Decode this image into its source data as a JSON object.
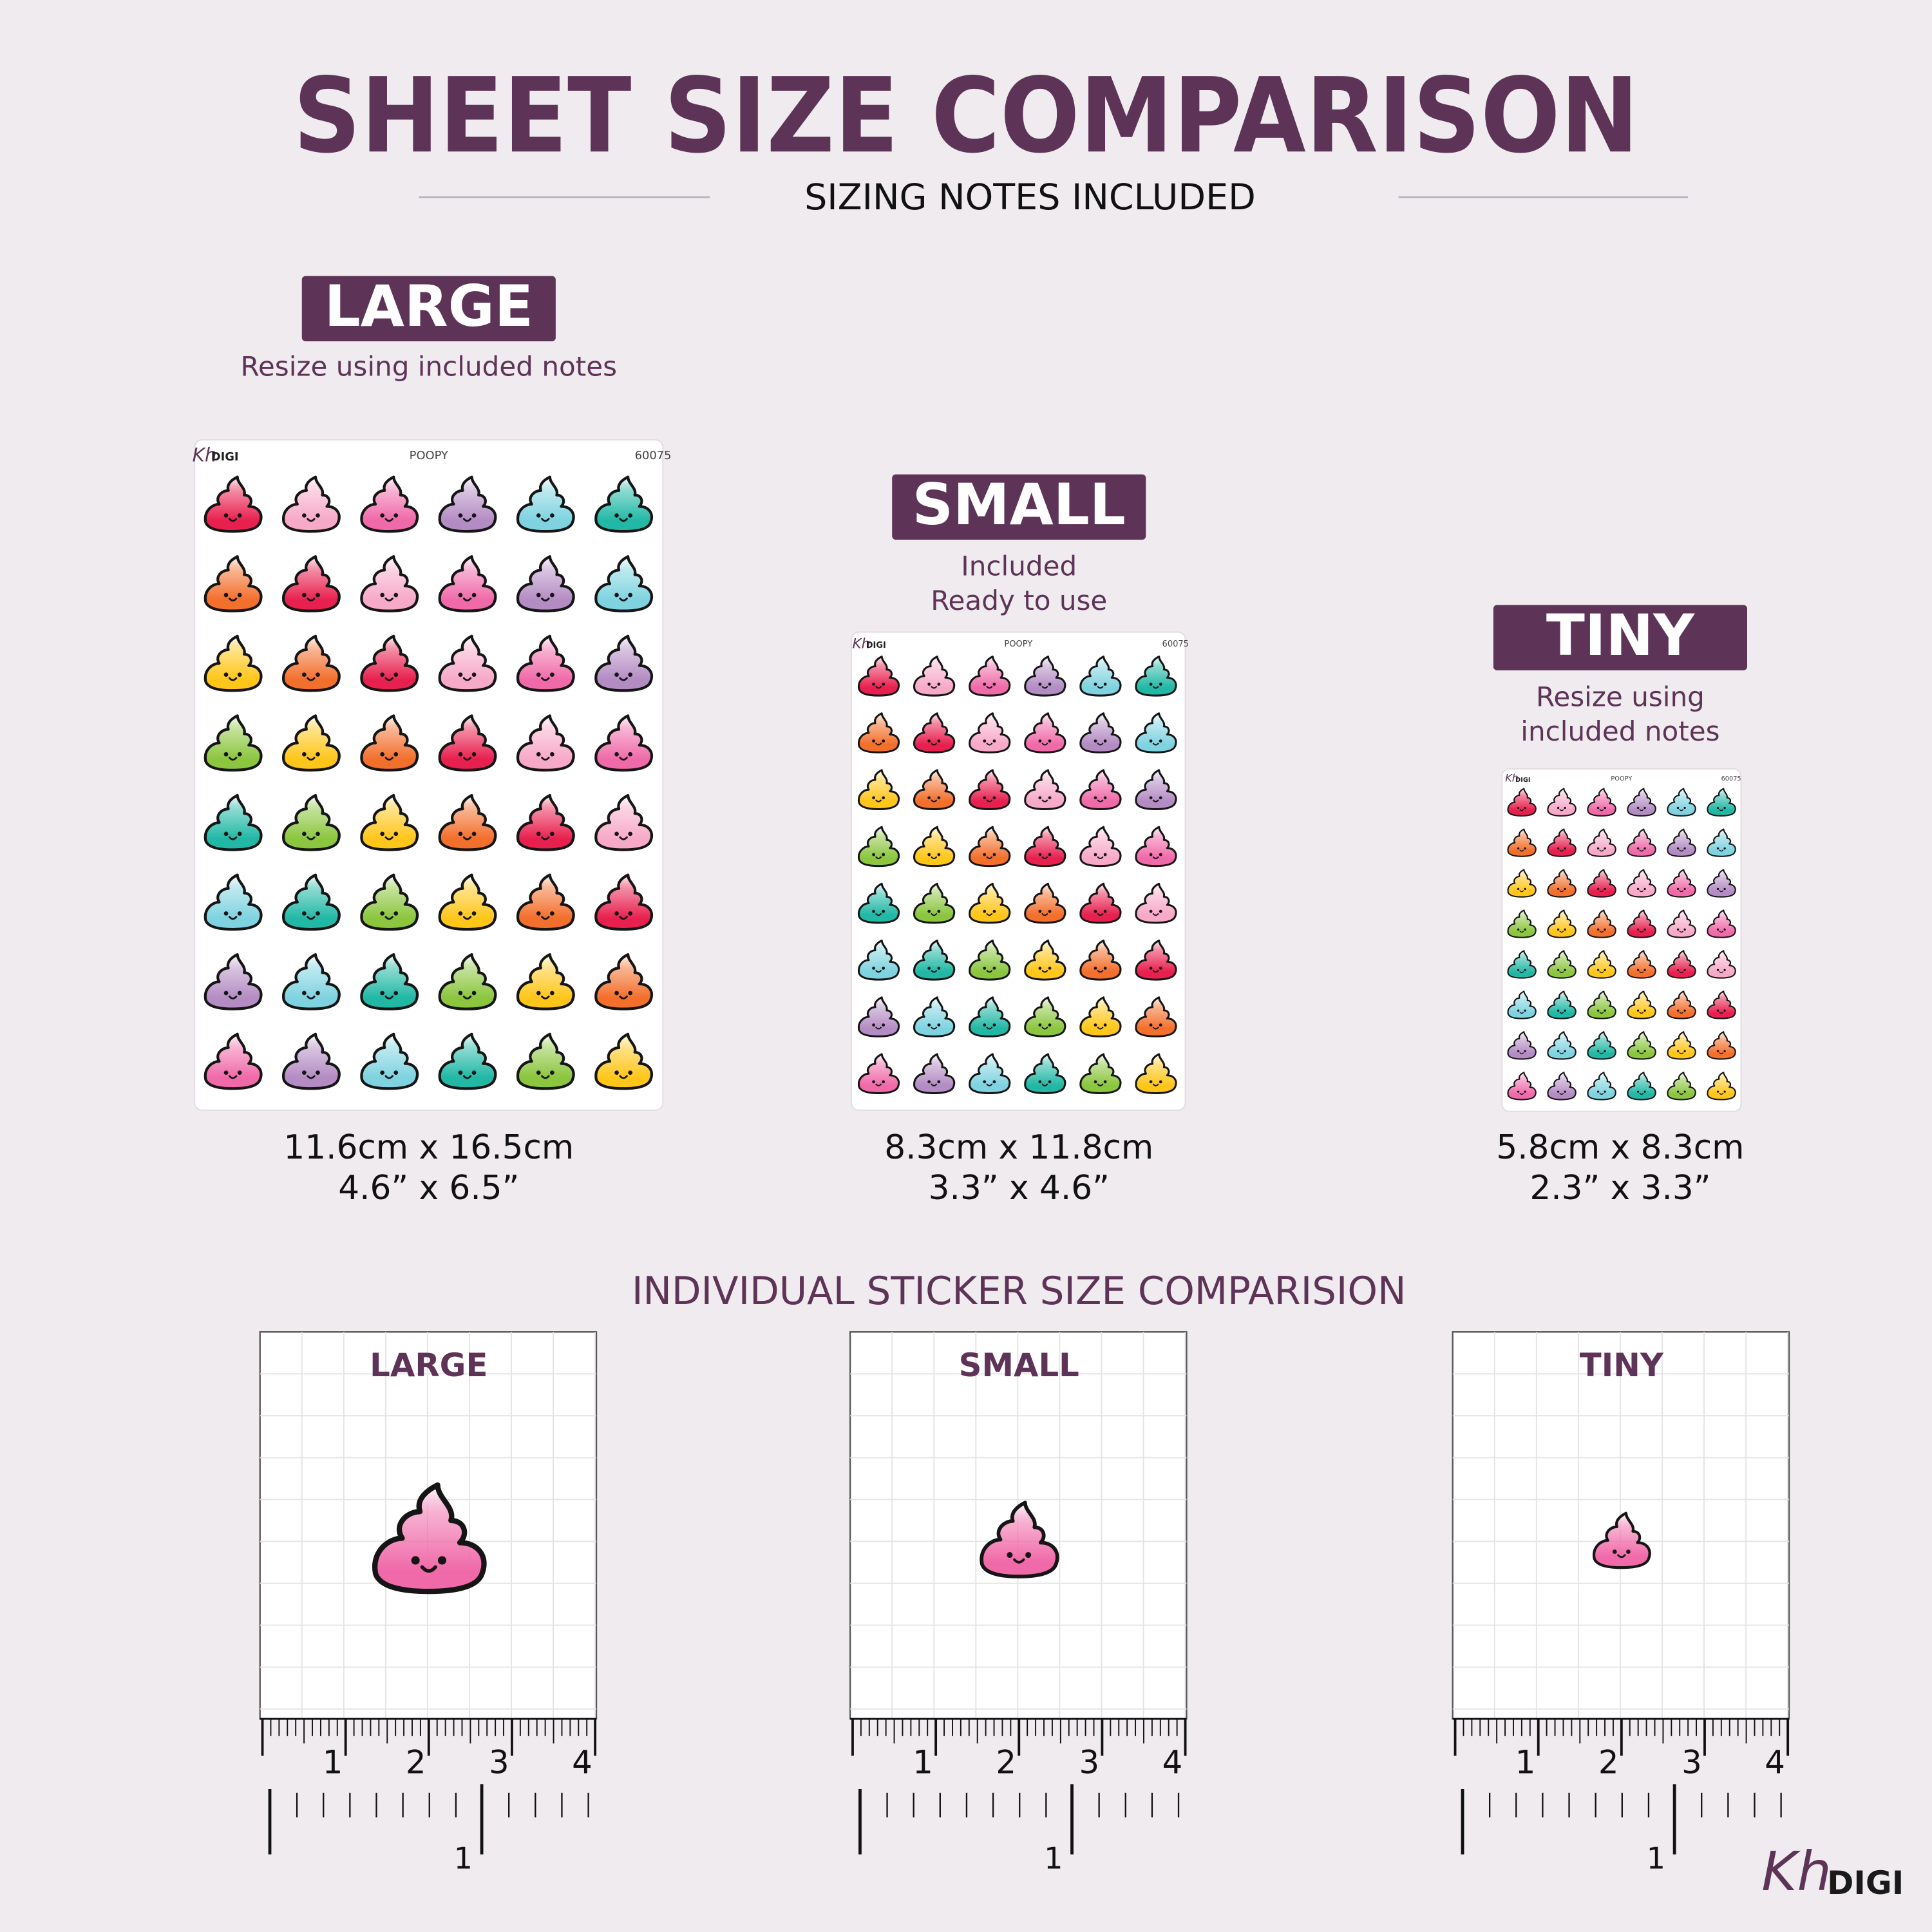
{
  "header": {
    "title": "SHEET SIZE COMPARISON",
    "subtitle": "SIZING NOTES INCLUDED"
  },
  "sheets": [
    {
      "badge": "LARGE",
      "note": [
        "Resize using included notes"
      ],
      "sheet_logo_script": "Kh",
      "sheet_logo_text": "DIGI",
      "sheet_name": "POOPY",
      "sheet_code": "60075",
      "size_cm": "11.6cm x 16.5cm",
      "size_in": "4.6” x 6.5”"
    },
    {
      "badge": "SMALL",
      "note": [
        "Included",
        "Ready to use"
      ],
      "sheet_logo_script": "Kh",
      "sheet_logo_text": "DIGI",
      "sheet_name": "POOPY",
      "sheet_code": "60075",
      "size_cm": "8.3cm x 11.8cm",
      "size_in": "3.3” x 4.6”"
    },
    {
      "badge": "TINY",
      "note": [
        "Resize using",
        "included notes"
      ],
      "sheet_logo_script": "Kh",
      "sheet_logo_text": "DIGI",
      "sheet_name": "POOPY",
      "sheet_code": "60075",
      "size_cm": "5.8cm x 8.3cm",
      "size_in": "2.3” x 3.3”"
    }
  ],
  "section_title": "INDIVIDUAL STICKER SIZE COMPARISION",
  "comparisons": [
    {
      "label": "LARGE",
      "cm_labels": [
        "1",
        "2",
        "3",
        "4"
      ],
      "inch_label": "1"
    },
    {
      "label": "SMALL",
      "cm_labels": [
        "1",
        "2",
        "3",
        "4"
      ],
      "inch_label": "1"
    },
    {
      "label": "TINY",
      "cm_labels": [
        "1",
        "2",
        "3",
        "4"
      ],
      "inch_label": "1"
    }
  ],
  "brand": {
    "logo_script": "Kh",
    "logo_text": "DIGI"
  }
}
